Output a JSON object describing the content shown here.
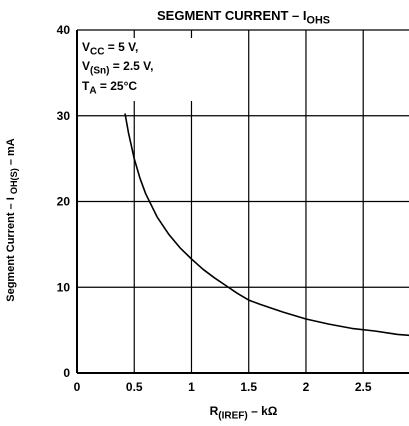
{
  "chart_data": {
    "type": "line",
    "title": "SEGMENT CURRENT – I",
    "title_sub": "OHS",
    "xlabel": "R",
    "xlabel_sub": "(IREF)",
    "xlabel_tail": " – kΩ",
    "ylabel": "Segment Current – I ",
    "ylabel_sub": "OH(S)",
    "ylabel_tail": " – mA",
    "xlim": [
      0,
      2.9
    ],
    "ylim": [
      0,
      40
    ],
    "x_ticks": [
      "0",
      "0.5",
      "1",
      "1.5",
      "2",
      "2.5"
    ],
    "x_tick_values": [
      0,
      0.5,
      1,
      1.5,
      2,
      2.5
    ],
    "y_ticks": [
      "0",
      "10",
      "20",
      "30",
      "40"
    ],
    "y_tick_values": [
      0,
      10,
      20,
      30,
      40
    ],
    "grid": true,
    "series": [
      {
        "x": [
          0.42,
          0.45,
          0.5,
          0.55,
          0.6,
          0.7,
          0.8,
          0.9,
          1.0,
          1.1,
          1.2,
          1.3,
          1.4,
          1.5,
          1.6,
          1.8,
          2.0,
          2.2,
          2.4,
          2.6,
          2.8,
          2.9
        ],
        "y": [
          30.2,
          28.0,
          25.0,
          22.7,
          20.9,
          18.2,
          16.2,
          14.6,
          13.3,
          12.1,
          11.1,
          10.2,
          9.3,
          8.5,
          8.0,
          7.1,
          6.3,
          5.7,
          5.2,
          4.9,
          4.5,
          4.4
        ]
      }
    ],
    "annotation": {
      "lines": [
        {
          "main": "V",
          "sub": "CC",
          "tail": " = 5 V,"
        },
        {
          "main": "V",
          "sub": "(Sn)",
          "tail": " = 2.5 V,"
        },
        {
          "main": "T",
          "sub": "A",
          "tail": " = 25°C"
        }
      ]
    }
  }
}
